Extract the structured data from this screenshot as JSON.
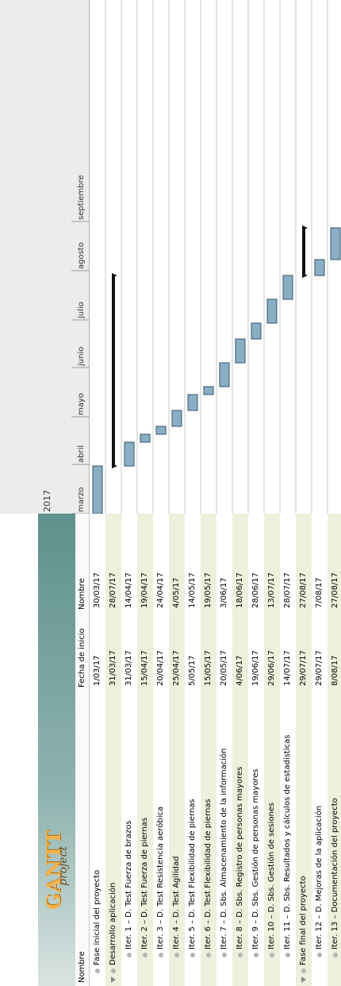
{
  "app": {
    "logo_text": "GANTT",
    "logo_sub": "project"
  },
  "table": {
    "headers": {
      "name": "Nombre",
      "start": "Fecha de inicio",
      "end": "Nombre"
    },
    "rows": [
      {
        "name": "Fase inicial del proyecto",
        "start": "1/03/17",
        "end": "30/03/17",
        "type": "task",
        "indent": 0
      },
      {
        "name": "Desarrollo aplicación",
        "start": "31/03/17",
        "end": "28/07/17",
        "type": "summary",
        "indent": 0
      },
      {
        "name": "Iter. 1 – D. Test Fuerza de brazos",
        "start": "31/03/17",
        "end": "14/04/17",
        "type": "task",
        "indent": 1
      },
      {
        "name": "Iter. 2 – D. Test Fuerza de piernas",
        "start": "15/04/17",
        "end": "19/04/17",
        "type": "task",
        "indent": 1
      },
      {
        "name": "Iter. 3 – D. Test Resistencia aeróbica",
        "start": "20/04/17",
        "end": "24/04/17",
        "type": "task",
        "indent": 1
      },
      {
        "name": "Iter. 4 – D. Test Agilidad",
        "start": "25/04/17",
        "end": "4/05/17",
        "type": "task",
        "indent": 1
      },
      {
        "name": "Iter. 5 – D. Test Flexibilidad de piernas",
        "start": "5/05/17",
        "end": "14/05/17",
        "type": "task",
        "indent": 1
      },
      {
        "name": "Iter. 6 – D. Test Flexibilidad de piernas",
        "start": "15/05/17",
        "end": "19/05/17",
        "type": "task",
        "indent": 1
      },
      {
        "name": "Iter. 7 – D. Sbs. Almacenamiento de la información",
        "start": "20/05/17",
        "end": "3/06/17",
        "type": "task",
        "indent": 1
      },
      {
        "name": "Iter. 8 – D. Sbs. Registro de personas mayores",
        "start": "4/06/17",
        "end": "18/06/17",
        "type": "task",
        "indent": 1
      },
      {
        "name": "Iter. 9 – D. Sbs. Gestión de personas mayores",
        "start": "19/06/17",
        "end": "28/06/17",
        "type": "task",
        "indent": 1
      },
      {
        "name": "Iter. 10 – D. Sbs. Gestión de sesiones",
        "start": "29/06/17",
        "end": "13/07/17",
        "type": "task",
        "indent": 1
      },
      {
        "name": "Iter. 11 – D. Sbs. Resultados y cálculos de estadísticas",
        "start": "14/07/17",
        "end": "28/07/17",
        "type": "task",
        "indent": 1
      },
      {
        "name": "Fase final del proyecto",
        "start": "29/07/17",
        "end": "27/08/17",
        "type": "summary",
        "indent": 0
      },
      {
        "name": "Iter. 12 – D. Mejoras de la aplicación",
        "start": "29/07/17",
        "end": "7/08/17",
        "type": "task",
        "indent": 1
      },
      {
        "name": "Iter. 13 – Documentación del proyecto",
        "start": "8/08/17",
        "end": "27/08/17",
        "type": "task",
        "indent": 1
      }
    ]
  },
  "timeline": {
    "year": "2017",
    "months": [
      "marzo",
      "abril",
      "mayo",
      "junio",
      "julio",
      "agosto",
      "septiembre"
    ]
  },
  "colors": {
    "task_bar": "#8aaec4",
    "task_border": "#34556a",
    "summary_bar": "#111111",
    "row_stripe": "#eef0dc",
    "grid": "#c8c8c8"
  },
  "chart_data": {
    "type": "gantt",
    "title": "",
    "x_axis": {
      "range": [
        "2017-03-01",
        "2017-09-30"
      ],
      "tick_labels": [
        "marzo",
        "abril",
        "mayo",
        "junio",
        "julio",
        "agosto",
        "septiembre"
      ],
      "year_label": "2017"
    },
    "tasks": [
      {
        "name": "Fase inicial del proyecto",
        "start": "2017-03-01",
        "end": "2017-03-30",
        "kind": "task"
      },
      {
        "name": "Desarrollo aplicación",
        "start": "2017-03-31",
        "end": "2017-07-28",
        "kind": "summary"
      },
      {
        "name": "Iter. 1 – D. Test Fuerza de brazos",
        "start": "2017-03-31",
        "end": "2017-04-14",
        "kind": "task"
      },
      {
        "name": "Iter. 2 – D. Test Fuerza de piernas",
        "start": "2017-04-15",
        "end": "2017-04-19",
        "kind": "task"
      },
      {
        "name": "Iter. 3 – D. Test Resistencia aeróbica",
        "start": "2017-04-20",
        "end": "2017-04-24",
        "kind": "task"
      },
      {
        "name": "Iter. 4 – D. Test Agilidad",
        "start": "2017-04-25",
        "end": "2017-05-04",
        "kind": "task"
      },
      {
        "name": "Iter. 5 – D. Test Flexibilidad de piernas",
        "start": "2017-05-05",
        "end": "2017-05-14",
        "kind": "task"
      },
      {
        "name": "Iter. 6 – D. Test Flexibilidad de piernas",
        "start": "2017-05-15",
        "end": "2017-05-19",
        "kind": "task"
      },
      {
        "name": "Iter. 7 – D. Sbs. Almacenamiento de la información",
        "start": "2017-05-20",
        "end": "2017-06-03",
        "kind": "task"
      },
      {
        "name": "Iter. 8 – D. Sbs. Registro de personas mayores",
        "start": "2017-06-04",
        "end": "2017-06-18",
        "kind": "task"
      },
      {
        "name": "Iter. 9 – D. Sbs. Gestión de personas mayores",
        "start": "2017-06-19",
        "end": "2017-06-28",
        "kind": "task"
      },
      {
        "name": "Iter. 10 – D. Sbs. Gestión de sesiones",
        "start": "2017-06-29",
        "end": "2017-07-13",
        "kind": "task"
      },
      {
        "name": "Iter. 11 – D. Sbs. Resultados y cálculos de estadísticas",
        "start": "2017-07-14",
        "end": "2017-07-28",
        "kind": "task"
      },
      {
        "name": "Fase final del proyecto",
        "start": "2017-07-29",
        "end": "2017-08-27",
        "kind": "summary"
      },
      {
        "name": "Iter. 12 – D. Mejoras de la aplicación",
        "start": "2017-07-29",
        "end": "2017-08-07",
        "kind": "task"
      },
      {
        "name": "Iter. 13 – Documentación del proyecto",
        "start": "2017-08-08",
        "end": "2017-08-27",
        "kind": "task"
      }
    ]
  }
}
